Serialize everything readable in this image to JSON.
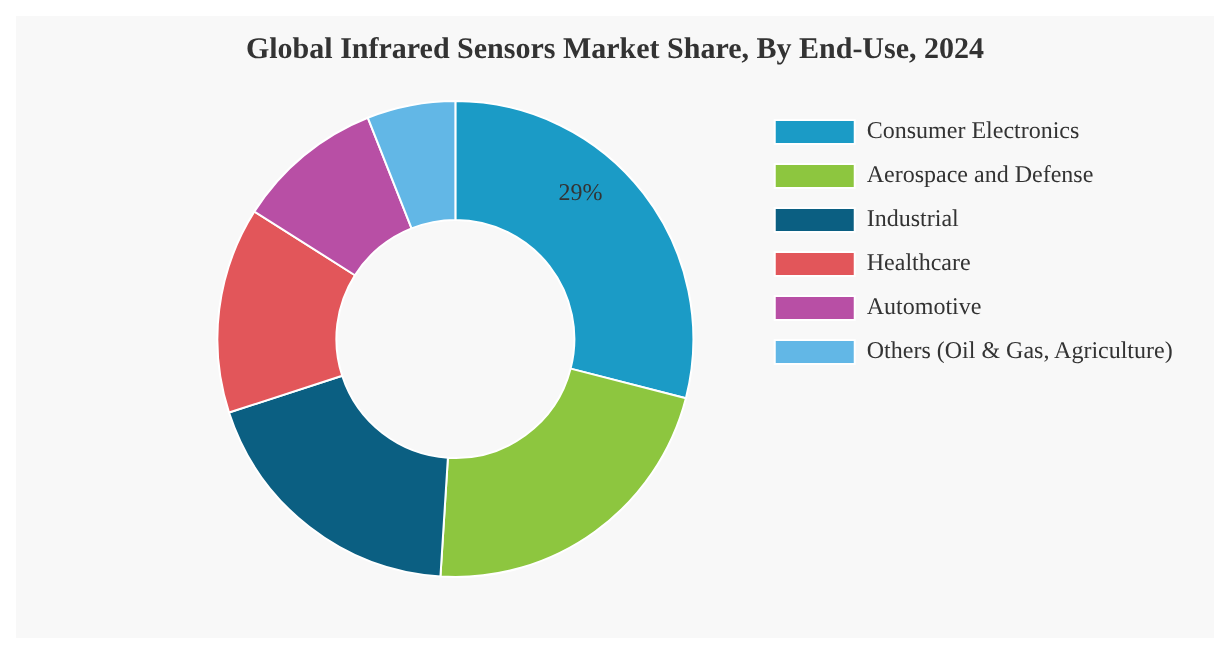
{
  "chart_data": {
    "type": "donut",
    "title": "Global Infrared Sensors Market Share, By End-Use, 2024",
    "categories": [
      "Consumer Electronics",
      "Aerospace and Defense",
      "Industrial",
      "Healthcare",
      "Automotive",
      "Others (Oil & Gas, Agriculture)"
    ],
    "values": [
      29,
      22,
      19,
      14,
      10,
      6
    ],
    "colors": [
      "#1b9bc6",
      "#8dc63f",
      "#0b5f82",
      "#e2565a",
      "#b84fa5",
      "#62b7e6"
    ],
    "value_labels": [
      "29%",
      null,
      null,
      null,
      null,
      null
    ],
    "legend": "right"
  }
}
